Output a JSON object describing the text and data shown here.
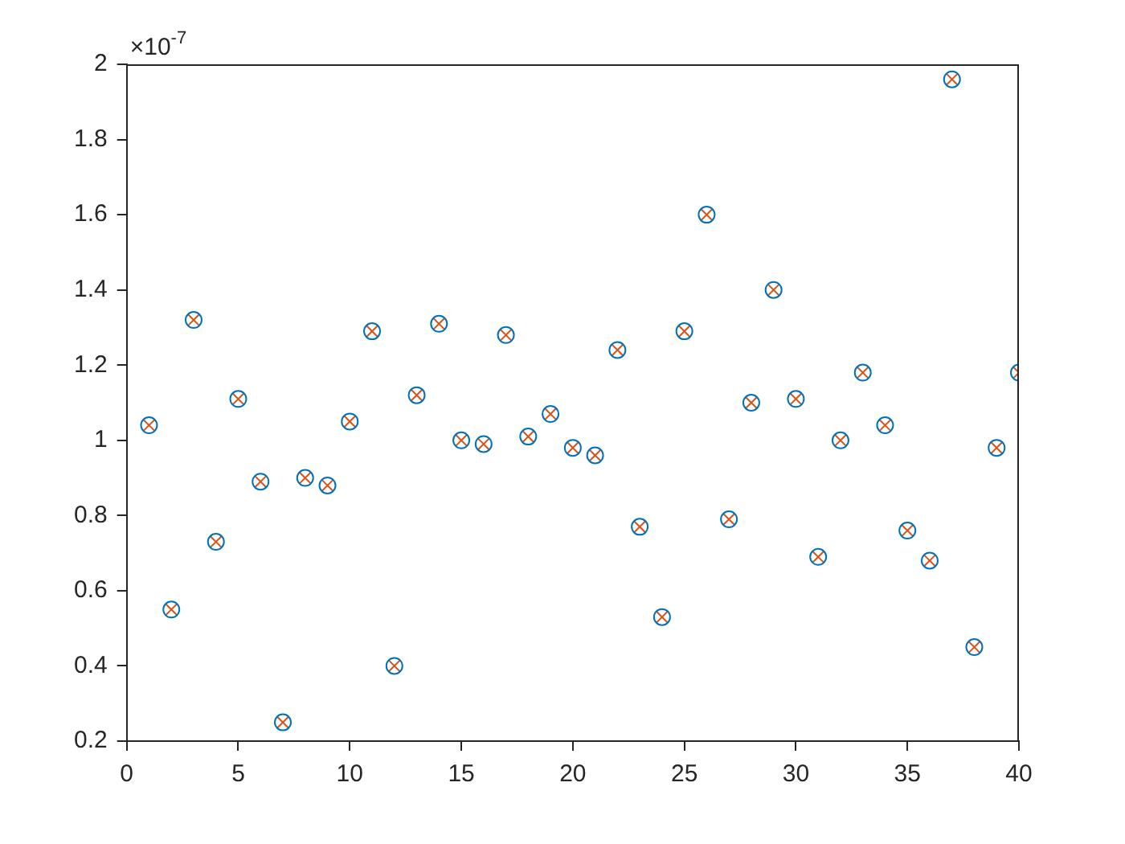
{
  "chart_data": {
    "type": "scatter",
    "x": [
      1,
      2,
      3,
      4,
      5,
      6,
      7,
      8,
      9,
      10,
      11,
      12,
      13,
      14,
      15,
      16,
      17,
      18,
      19,
      20,
      21,
      22,
      23,
      24,
      25,
      26,
      27,
      28,
      29,
      30,
      31,
      32,
      33,
      34,
      35,
      36,
      37,
      38,
      39,
      40
    ],
    "series": [
      {
        "color": "#0072bd",
        "marker": "circle",
        "values": [
          1.04,
          0.55,
          1.32,
          0.73,
          1.11,
          0.89,
          0.25,
          0.9,
          0.88,
          1.05,
          1.29,
          0.4,
          1.12,
          1.31,
          1.0,
          0.99,
          1.28,
          1.01,
          1.07,
          0.98,
          0.96,
          1.24,
          0.77,
          0.53,
          1.29,
          1.6,
          0.79,
          1.1,
          1.4,
          1.11,
          0.69,
          1.0,
          1.18,
          1.04,
          0.76,
          0.68,
          1.96,
          0.45,
          0.98,
          1.18
        ]
      },
      {
        "color": "#d95319",
        "marker": "cross",
        "values": [
          1.04,
          0.55,
          1.32,
          0.73,
          1.11,
          0.89,
          0.25,
          0.9,
          0.88,
          1.05,
          1.29,
          0.4,
          1.12,
          1.31,
          1.0,
          0.99,
          1.28,
          1.01,
          1.07,
          0.98,
          0.96,
          1.24,
          0.77,
          0.53,
          1.29,
          1.6,
          0.79,
          1.1,
          1.4,
          1.11,
          0.69,
          1.0,
          1.18,
          1.04,
          0.76,
          0.68,
          1.96,
          0.45,
          0.98,
          1.18
        ]
      }
    ],
    "xlim": [
      0,
      40
    ],
    "xticks": [
      0,
      5,
      10,
      15,
      20,
      25,
      30,
      35,
      40
    ],
    "ylim": [
      0.2,
      2
    ],
    "yticks": [
      0.2,
      0.4,
      0.6,
      0.8,
      1,
      1.2,
      1.4,
      1.6,
      1.8,
      2
    ],
    "grid": false,
    "legend": false,
    "annotations": [
      "×10$^{-7}$"
    ]
  }
}
